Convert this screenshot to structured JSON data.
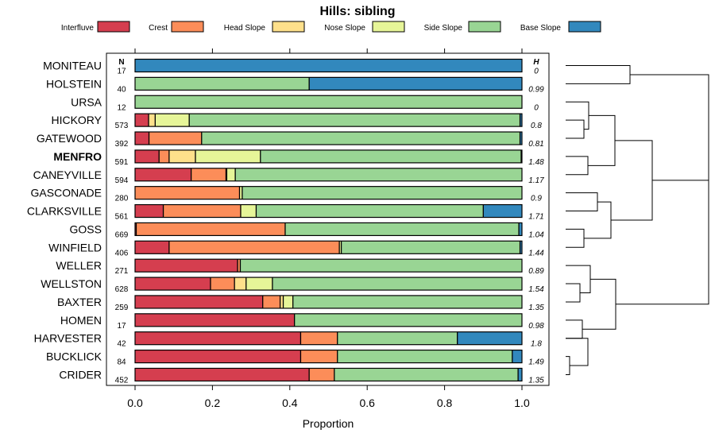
{
  "chart_data": {
    "type": "bar",
    "orientation": "horizontal",
    "stacked": true,
    "title": "Hills: sibling",
    "xlabel": "Proportion",
    "xlim": [
      0,
      1
    ],
    "xticks": [
      "0.0",
      "0.2",
      "0.4",
      "0.6",
      "0.8",
      "1.0"
    ],
    "n_header": "N",
    "h_header": "H",
    "legend": [
      {
        "name": "Interfluve",
        "color": "#D53E4F"
      },
      {
        "name": "Crest",
        "color": "#FC8D59"
      },
      {
        "name": "Head Slope",
        "color": "#FEE08B"
      },
      {
        "name": "Nose Slope",
        "color": "#E6F598"
      },
      {
        "name": "Side Slope",
        "color": "#99D594"
      },
      {
        "name": "Base Slope",
        "color": "#3288BD"
      }
    ],
    "highlight": "MENFRO",
    "rows": [
      {
        "name": "MONITEAU",
        "n": "17",
        "h": "0",
        "values": [
          0,
          0,
          0,
          0,
          0,
          1.0
        ]
      },
      {
        "name": "HOLSTEIN",
        "n": "40",
        "h": "0.99",
        "values": [
          0,
          0,
          0,
          0,
          0.45,
          0.55
        ]
      },
      {
        "name": "URSA",
        "n": "12",
        "h": "0",
        "values": [
          0,
          0,
          0,
          0,
          1.0,
          0
        ]
      },
      {
        "name": "HICKORY",
        "n": "573",
        "h": "0.8",
        "values": [
          0.035,
          0,
          0.017,
          0.088,
          0.855,
          0.005
        ]
      },
      {
        "name": "GATEWOOD",
        "n": "392",
        "h": "0.81",
        "values": [
          0.036,
          0.136,
          0,
          0,
          0.823,
          0.005
        ]
      },
      {
        "name": "MENFRO",
        "n": "591",
        "h": "1.48",
        "values": [
          0.062,
          0.026,
          0.068,
          0.168,
          0.674,
          0.002
        ]
      },
      {
        "name": "CANEYVILLE",
        "n": "594",
        "h": "1.17",
        "values": [
          0.145,
          0.09,
          0.002,
          0.022,
          0.741,
          0
        ]
      },
      {
        "name": "GASCONADE",
        "n": "280",
        "h": "0.9",
        "values": [
          0,
          0.27,
          0,
          0.007,
          0.723,
          0
        ]
      },
      {
        "name": "CLARKSVILLE",
        "n": "561",
        "h": "1.71",
        "values": [
          0.073,
          0.2,
          0,
          0.04,
          0.587,
          0.1
        ]
      },
      {
        "name": "GOSS",
        "n": "669",
        "h": "1.04",
        "values": [
          0.003,
          0.385,
          0,
          0,
          0.604,
          0.008
        ]
      },
      {
        "name": "WINFIELD",
        "n": "406",
        "h": "1.44",
        "values": [
          0.088,
          0.44,
          0,
          0.005,
          0.462,
          0.005
        ]
      },
      {
        "name": "WELLER",
        "n": "271",
        "h": "0.89",
        "values": [
          0.265,
          0.007,
          0,
          0,
          0.728,
          0
        ]
      },
      {
        "name": "WELLSTON",
        "n": "628",
        "h": "1.54",
        "values": [
          0.195,
          0.062,
          0.03,
          0.068,
          0.645,
          0
        ]
      },
      {
        "name": "BAXTER",
        "n": "259",
        "h": "1.35",
        "values": [
          0.33,
          0.045,
          0.008,
          0.025,
          0.592,
          0
        ]
      },
      {
        "name": "HOMEN",
        "n": "17",
        "h": "0.98",
        "values": [
          0.412,
          0,
          0,
          0,
          0.588,
          0
        ]
      },
      {
        "name": "HARVESTER",
        "n": "42",
        "h": "1.8",
        "values": [
          0.428,
          0.095,
          0,
          0,
          0.31,
          0.167
        ]
      },
      {
        "name": "BUCKLICK",
        "n": "84",
        "h": "1.49",
        "values": [
          0.428,
          0.095,
          0,
          0,
          0.452,
          0.025
        ]
      },
      {
        "name": "CRIDER",
        "n": "452",
        "h": "1.35",
        "values": [
          0.45,
          0.065,
          0,
          0,
          0.475,
          0.01
        ]
      }
    ]
  }
}
